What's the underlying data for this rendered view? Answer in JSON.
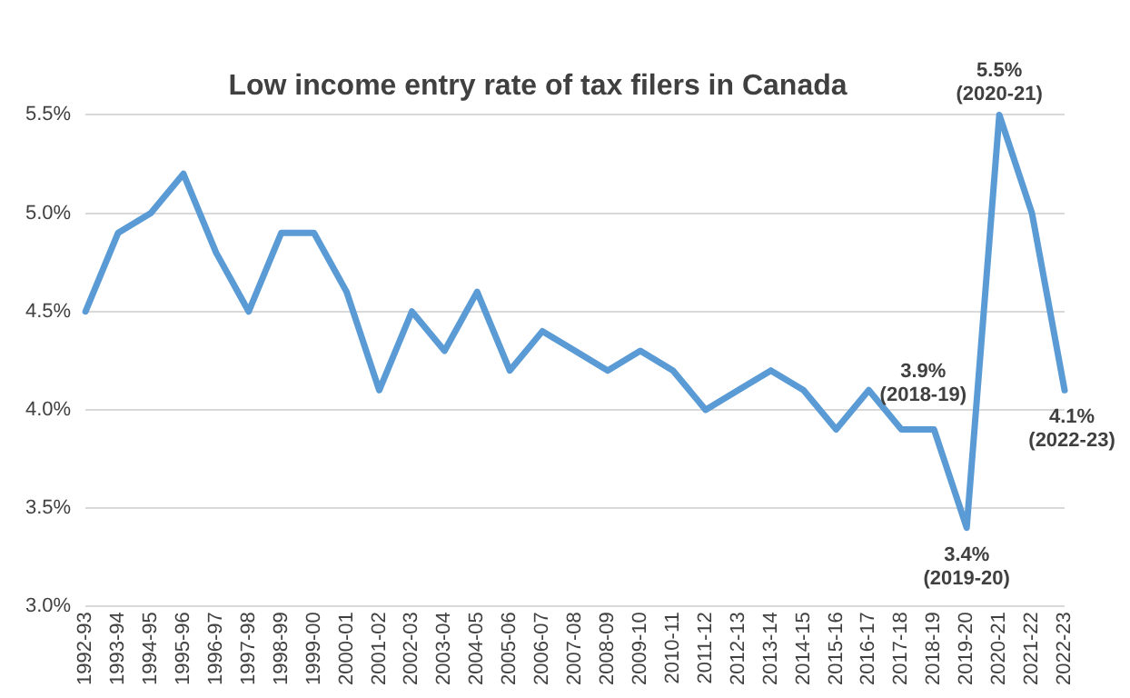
{
  "chart_data": {
    "type": "line",
    "title": "Low income entry rate of tax filers in Canada",
    "categories": [
      "1992-93",
      "1993-94",
      "1994-95",
      "1995-96",
      "1996-97",
      "1997-98",
      "1998-99",
      "1999-00",
      "2000-01",
      "2001-02",
      "2002-03",
      "2003-04",
      "2004-05",
      "2005-06",
      "2006-07",
      "2007-08",
      "2008-09",
      "2009-10",
      "2010-11",
      "2011-12",
      "2012-13",
      "2013-14",
      "2014-15",
      "2015-16",
      "2016-17",
      "2017-18",
      "2018-19",
      "2019-20",
      "2020-21",
      "2021-22",
      "2022-23"
    ],
    "series": [
      {
        "color": "#5b9bd5",
        "values": [
          4.5,
          4.9,
          5.0,
          5.2,
          4.8,
          4.5,
          4.9,
          4.9,
          4.6,
          4.1,
          4.5,
          4.3,
          4.6,
          4.2,
          4.4,
          4.3,
          4.2,
          4.3,
          4.2,
          4.0,
          4.1,
          4.2,
          4.1,
          3.9,
          4.1,
          3.9,
          3.9,
          3.4,
          5.5,
          5.0,
          4.1
        ]
      }
    ],
    "ylim": [
      3.0,
      5.5
    ],
    "yticks": [
      {
        "value": 3.0,
        "label": "3.0%"
      },
      {
        "value": 3.5,
        "label": "3.5%"
      },
      {
        "value": 4.0,
        "label": "4.0%"
      },
      {
        "value": 4.5,
        "label": "4.5%"
      },
      {
        "value": 5.0,
        "label": "5.0%"
      },
      {
        "value": 5.5,
        "label": "5.5%"
      }
    ],
    "grid": "y",
    "legend": false,
    "marker": "none",
    "line_style": "solid",
    "annotations": [
      {
        "text": "3.9%\n(2018-19)",
        "x": "2018-19",
        "y": 3.9
      },
      {
        "text": "3.4%\n(2019-20)",
        "x": "2019-20",
        "y": 3.4
      },
      {
        "text": "5.5%\n(2020-21)",
        "x": "2020-21",
        "y": 5.5
      },
      {
        "text": "4.1%\n(2022-23)",
        "x": "2022-23",
        "y": 4.1
      }
    ]
  }
}
